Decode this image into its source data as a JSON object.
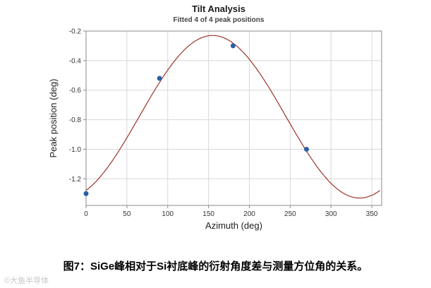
{
  "chart_data": {
    "type": "line",
    "title": "Tilt Analysis",
    "subtitle": "Fitted 4 of 4 peak positions",
    "xlabel": "Azimuth (deg)",
    "ylabel": "Peak position (deg)",
    "xlim": [
      0,
      362
    ],
    "ylim": [
      -1.38,
      -0.2
    ],
    "xticks": [
      0,
      50,
      100,
      150,
      200,
      250,
      300,
      350
    ],
    "yticks": [
      -0.2,
      -0.4,
      -0.6,
      -0.8,
      -1.0,
      -1.2
    ],
    "grid": true,
    "legend_position": "none",
    "points": [
      {
        "x": 0,
        "y": -1.3
      },
      {
        "x": 90,
        "y": -0.52
      },
      {
        "x": 180,
        "y": -0.3
      },
      {
        "x": 270,
        "y": -1.0
      }
    ],
    "fit_curve": {
      "model": "cosine",
      "mean": -0.78,
      "amplitude": 0.55,
      "phase_deg": 155,
      "x_start": 0,
      "x_end": 360
    },
    "colors": {
      "curve": "#9c3529",
      "points": "#2a5fa5",
      "grid": "#d8d8d8",
      "axis": "#8a8a8a",
      "title": "#1a1a1a",
      "subtitle": "#444444",
      "tick_text": "#333333",
      "axis_text": "#222222"
    }
  },
  "caption": "图7：SiGe峰相对于Si衬底峰的衍射角度差与测量方位角的关系。",
  "watermark": "©大鱼半导体"
}
